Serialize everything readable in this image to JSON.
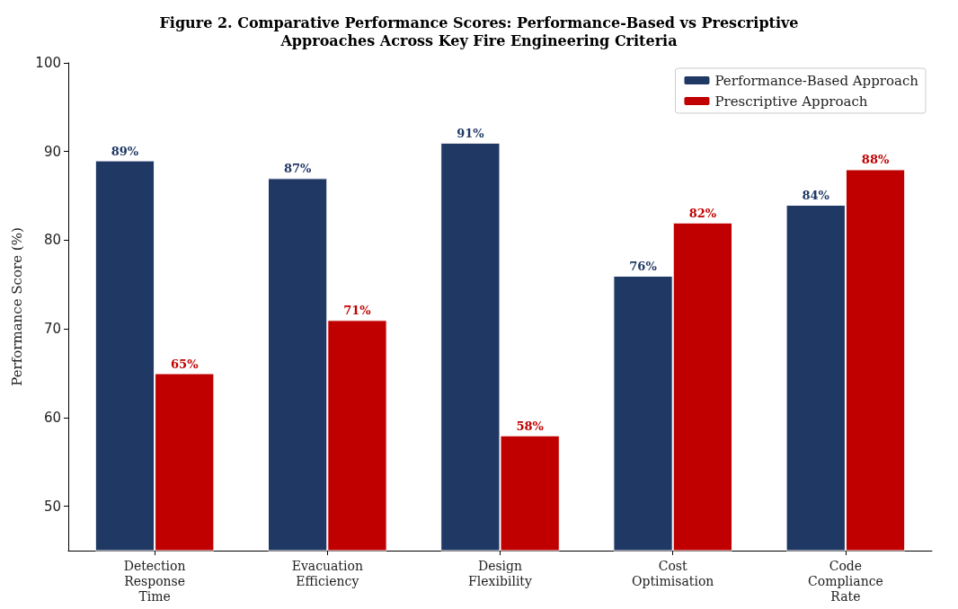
{
  "chart_data": {
    "type": "bar",
    "title": "Figure 2. Comparative Performance Scores: Performance-Based vs Prescriptive\nApproaches Across Key Fire Engineering Criteria",
    "ylabel": "Performance Score (%)",
    "categories": [
      "Detection Response Time",
      "Evacuation Efficiency",
      "Design Flexibility",
      "Cost Optimisation",
      "Code Compliance Rate"
    ],
    "series": [
      {
        "name": "Performance-Based Approach",
        "color": "#203864",
        "values": [
          89,
          87,
          91,
          76,
          84
        ],
        "value_labels": [
          "89%",
          "87%",
          "91%",
          "76%",
          "84%"
        ]
      },
      {
        "name": "Prescriptive Approach",
        "color": "#c00000",
        "values": [
          65,
          71,
          58,
          82,
          88
        ],
        "value_labels": [
          "65%",
          "71%",
          "58%",
          "82%",
          "88%"
        ]
      }
    ],
    "ylim": [
      45,
      100
    ],
    "yticks": [
      50,
      60,
      70,
      80,
      90,
      100
    ],
    "grid": false,
    "legend": "top right"
  }
}
